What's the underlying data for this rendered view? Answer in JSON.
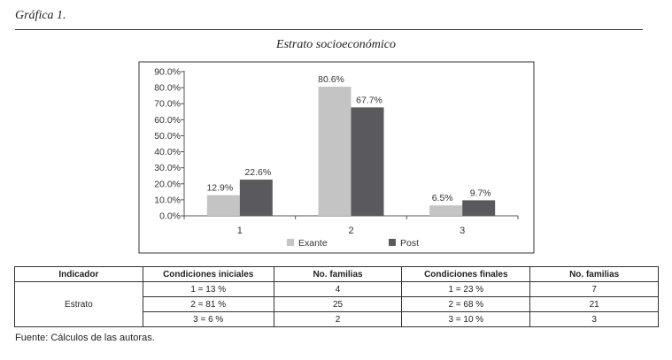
{
  "figure_label": "Gráfica 1.",
  "chart_data": {
    "type": "bar",
    "title": "Estrato socioeconómico",
    "categories": [
      "1",
      "2",
      "3"
    ],
    "series": [
      {
        "name": "Exante",
        "values": [
          12.9,
          80.6,
          6.5
        ],
        "labels": [
          "12.9%",
          "80.6%",
          "6.5%"
        ],
        "color": "#c4c4c4"
      },
      {
        "name": "Post",
        "values": [
          22.6,
          67.7,
          9.7
        ],
        "labels": [
          "22.6%",
          "67.7%",
          "9.7%"
        ],
        "color": "#5a595e"
      }
    ],
    "ylim": [
      0,
      90
    ],
    "yticks": [
      "0.0%",
      "10.0%",
      "20.0%",
      "30.0%",
      "40.0%",
      "50.0%",
      "60.0%",
      "70.0%",
      "80.0%",
      "90.0%"
    ],
    "grid": false,
    "legend_position": "bottom"
  },
  "table": {
    "headers": [
      "Indicador",
      "Condiciones iniciales",
      "No. familias",
      "Condiciones finales",
      "No. familias"
    ],
    "indicator": "Estrato",
    "rows": [
      [
        "1 = 13 %",
        "4",
        "1 = 23 %",
        "7"
      ],
      [
        "2 = 81 %",
        "25",
        "2 = 68 %",
        "21"
      ],
      [
        "3 = 6 %",
        "2",
        "3 = 10 %",
        "3"
      ]
    ]
  },
  "source": "Fuente: Cálculos de las autoras."
}
